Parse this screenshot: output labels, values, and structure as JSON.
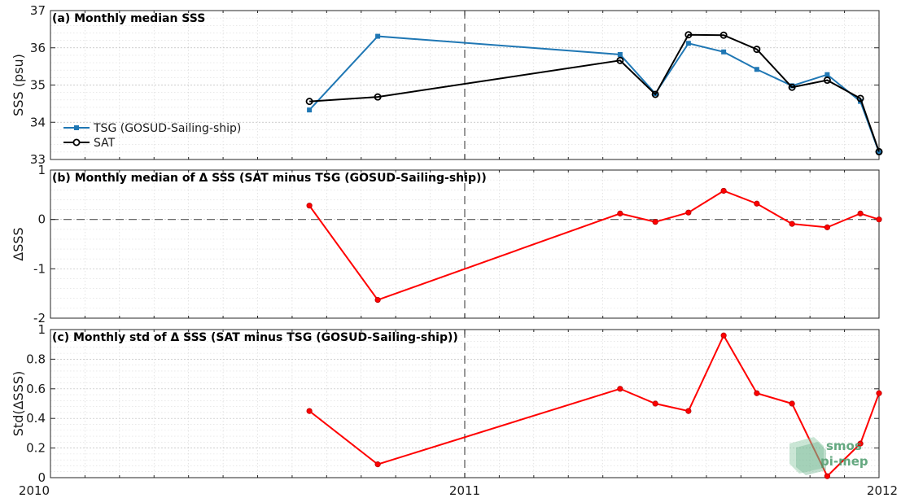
{
  "chart_data": [
    {
      "type": "line",
      "title": "(a) Monthly median SSS",
      "ylabel": "SSS (psu)",
      "xlim": [
        2010,
        2012
      ],
      "ylim": [
        33,
        37
      ],
      "xticks": [
        "2010",
        "2011",
        "2012"
      ],
      "yticks": [
        "33",
        "34",
        "35",
        "36",
        "37"
      ],
      "grid": true,
      "legend": "left",
      "series": [
        {
          "name": "TSG (GOSUD-Sailing-ship)",
          "color": "#1f77b4",
          "marker": "square",
          "x": [
            2010.625,
            2010.79,
            2011.375,
            2011.46,
            2011.54,
            2011.625,
            2011.705,
            2011.79,
            2011.875,
            2011.955,
            2012.0
          ],
          "y": [
            34.33,
            36.31,
            35.82,
            34.77,
            36.12,
            35.89,
            35.42,
            34.98,
            35.28,
            34.56,
            33.19
          ]
        },
        {
          "name": "SAT",
          "color": "#000000",
          "marker": "circle",
          "x": [
            2010.625,
            2010.79,
            2011.375,
            2011.46,
            2011.54,
            2011.625,
            2011.705,
            2011.79,
            2011.875,
            2011.955,
            2012.0
          ],
          "y": [
            34.56,
            34.68,
            35.66,
            34.75,
            36.35,
            36.34,
            35.96,
            34.94,
            35.13,
            34.64,
            33.21
          ]
        }
      ]
    },
    {
      "type": "line",
      "title": "(b) Monthly median of Δ SSS (SAT minus TSG (GOSUD-Sailing-ship))",
      "ylabel": "ΔSSS",
      "xlim": [
        2010,
        2012
      ],
      "ylim": [
        -2,
        1
      ],
      "xticks": [
        "2010",
        "2011",
        "2012"
      ],
      "yticks": [
        "-2",
        "-1",
        "0",
        "1"
      ],
      "grid": true,
      "zero_line": true,
      "series": [
        {
          "color": "#ff0000",
          "x": [
            2010.625,
            2010.79,
            2011.375,
            2011.46,
            2011.54,
            2011.625,
            2011.705,
            2011.79,
            2011.875,
            2011.955,
            2012.0
          ],
          "y": [
            0.28,
            -1.63,
            0.12,
            -0.05,
            0.14,
            0.58,
            0.32,
            -0.09,
            -0.16,
            0.12,
            0.0
          ]
        }
      ]
    },
    {
      "type": "line",
      "title": "(c) Monthly std of Δ SSS (SAT minus TSG (GOSUD-Sailing-ship))",
      "ylabel": "Std(ΔSSS)",
      "xlim": [
        2010,
        2012
      ],
      "ylim": [
        0,
        1
      ],
      "xticks": [
        "2010",
        "2011",
        "2012"
      ],
      "yticks": [
        "0",
        "0.2",
        "0.4",
        "0.6",
        "0.8",
        "1"
      ],
      "grid": true,
      "series": [
        {
          "color": "#ff0000",
          "x": [
            2010.625,
            2010.79,
            2011.375,
            2011.46,
            2011.54,
            2011.625,
            2011.705,
            2011.79,
            2011.875,
            2011.955,
            2012.0
          ],
          "y": [
            0.45,
            0.09,
            0.6,
            0.5,
            0.45,
            0.96,
            0.57,
            0.5,
            0.01,
            0.23,
            0.57
          ]
        }
      ]
    }
  ],
  "watermark": {
    "line1": "smos",
    "line2": "pi-mep"
  },
  "vline_year": 2011
}
